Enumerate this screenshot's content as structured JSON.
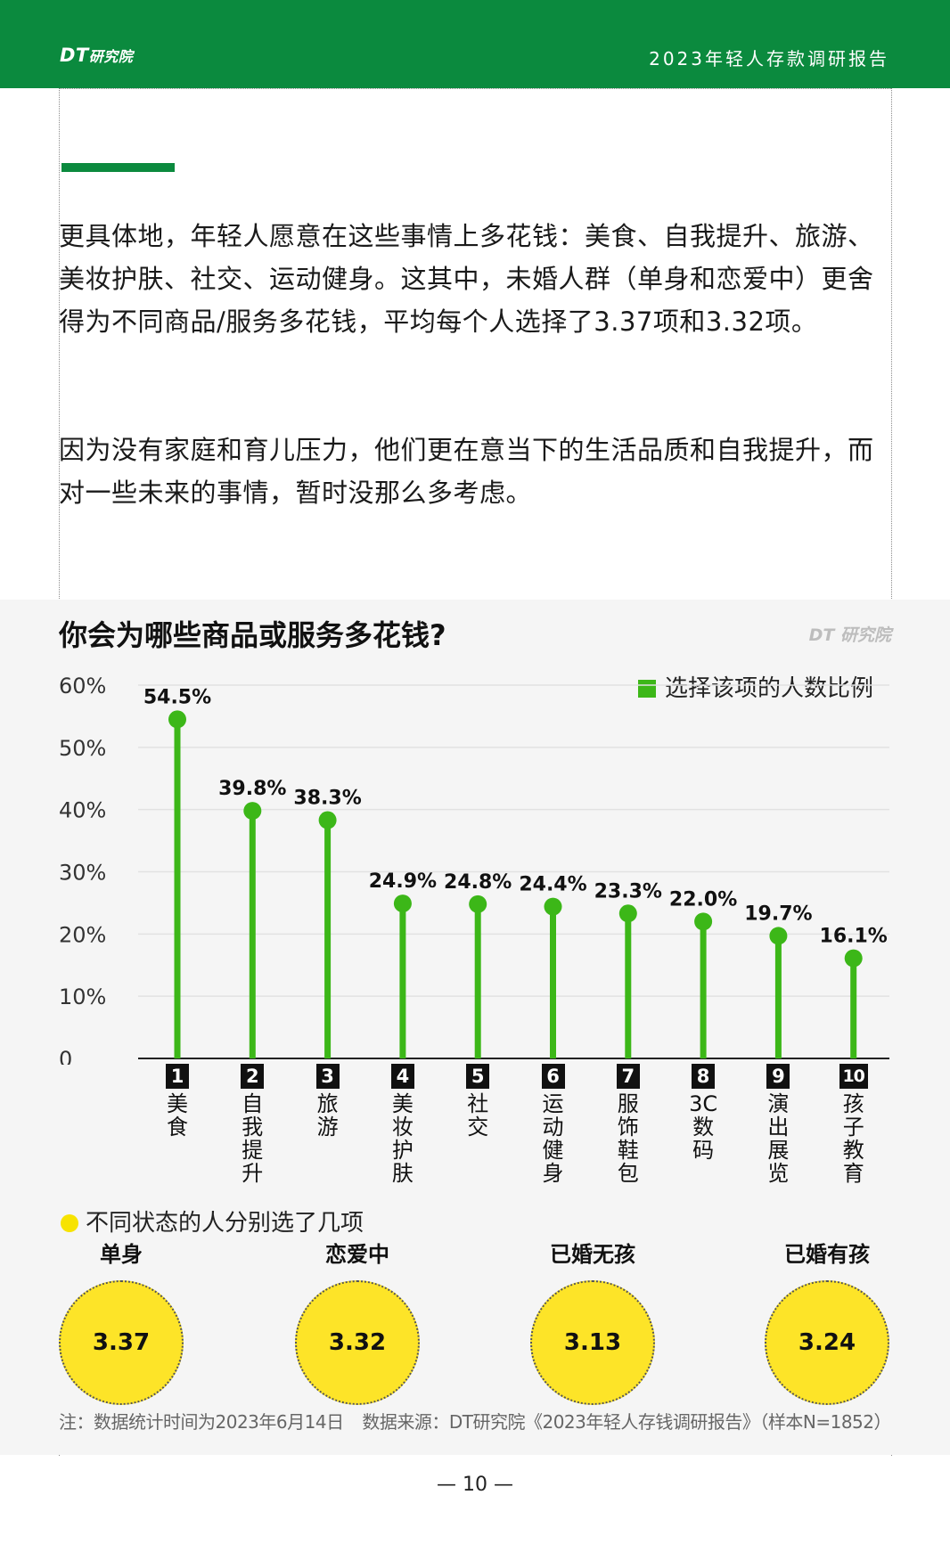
{
  "header": {
    "logo_dt": "DT",
    "logo_cn": "研究院",
    "title": "2023年轻人存款调研报告"
  },
  "paragraphs": [
    "更具体地，年轻人愿意在这些事情上多花钱：美食、自我提升、旅游、美妆护肤、社交、运动健身。这其中，未婚人群（单身和恋爱中）更舍得为不同商品/服务多花钱，平均每个人选择了3.37项和3.32项。",
    "因为没有家庭和育儿压力，他们更在意当下的生活品质和自我提升，而对一些未来的事情，暂时没那么多考虑。"
  ],
  "chart_logo": "DT 研究院",
  "chart_data": {
    "type": "lollipop",
    "title": "你会为哪些商品或服务多花钱?",
    "legend": "选择该项的人数比例",
    "legend_position": "top-right",
    "y_ticks": [
      "60%",
      "50%",
      "40%",
      "30%",
      "20%",
      "10%",
      "0"
    ],
    "ylim": [
      0,
      60
    ],
    "grid": true,
    "categories": [
      {
        "num": "1",
        "label": "美食"
      },
      {
        "num": "2",
        "label": "自我提升"
      },
      {
        "num": "3",
        "label": "旅游"
      },
      {
        "num": "4",
        "label": "美妆护肤"
      },
      {
        "num": "5",
        "label": "社交"
      },
      {
        "num": "6",
        "label": "运动健身"
      },
      {
        "num": "7",
        "label": "服饰鞋包"
      },
      {
        "num": "8",
        "label": "3C数码"
      },
      {
        "num": "9",
        "label": "演出展览"
      },
      {
        "num": "10",
        "label": "孩子教育"
      }
    ],
    "values": [
      54.5,
      39.8,
      38.3,
      24.9,
      24.8,
      24.4,
      23.3,
      22.0,
      19.7,
      16.1
    ],
    "value_labels": [
      "54.5%",
      "39.8%",
      "38.3%",
      "24.9%",
      "24.8%",
      "24.4%",
      "23.3%",
      "22.0%",
      "19.7%",
      "16.1%"
    ],
    "colors": {
      "stem": "#3cb718",
      "bubble": "#fde428",
      "brand": "#0b8a3e"
    }
  },
  "status": {
    "title": "不同状态的人分别选了几项",
    "groups": [
      {
        "label": "单身",
        "value": "3.37"
      },
      {
        "label": "恋爱中",
        "value": "3.32"
      },
      {
        "label": "已婚无孩",
        "value": "3.13"
      },
      {
        "label": "已婚有孩",
        "value": "3.24"
      }
    ]
  },
  "notes": {
    "left": "注：数据统计时间为2023年6月14日",
    "right": "数据来源：DT研究院《2023年轻人存钱调研报告》（样本N=1852）"
  },
  "page_number": "—  10  —"
}
